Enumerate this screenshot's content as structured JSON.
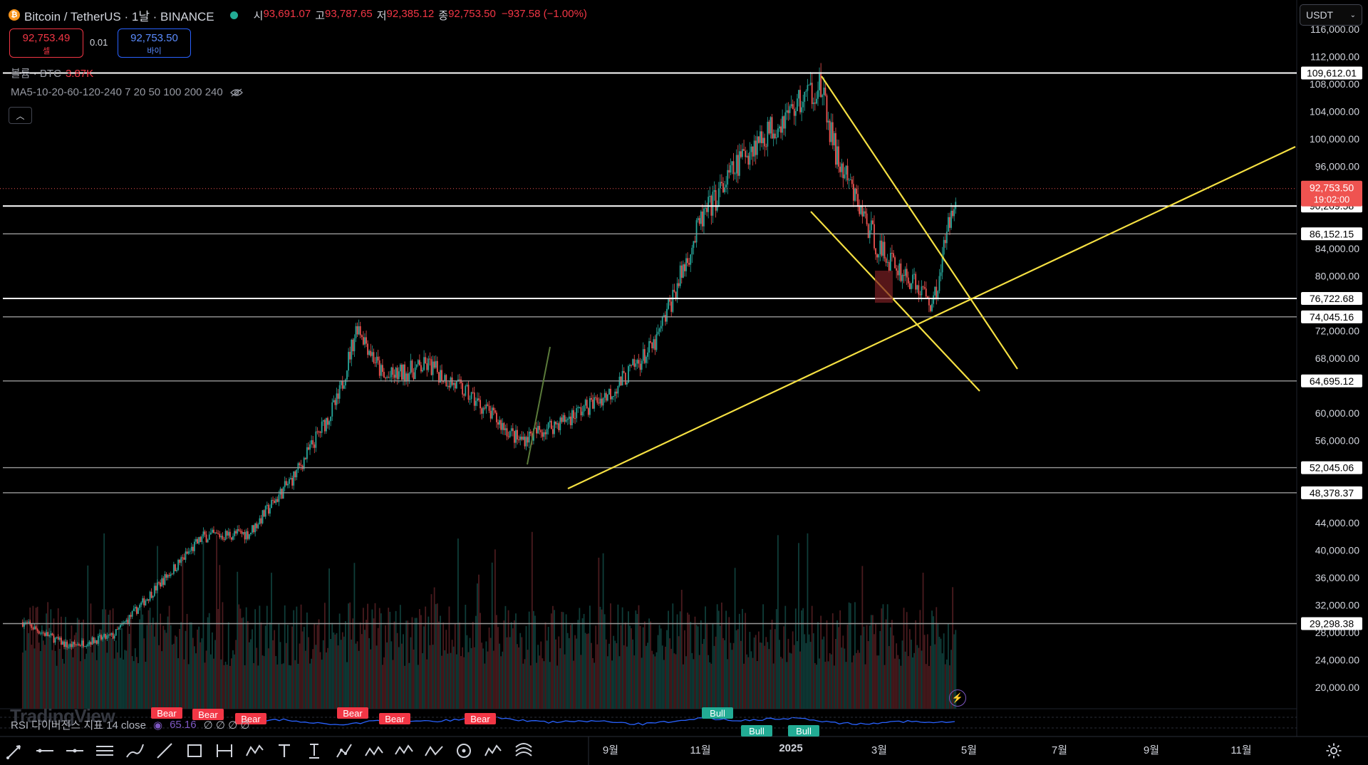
{
  "header": {
    "symbol": "Bitcoin / TetherUS · 1날 · BINANCE",
    "ohlc": [
      {
        "label": "시",
        "value": "93,691.07"
      },
      {
        "label": "고",
        "value": "93,787.65"
      },
      {
        "label": "저",
        "value": "92,385.12"
      },
      {
        "label": "종",
        "value": "92,753.50"
      },
      {
        "label": "",
        "value": "−937.58 (−1.00%)"
      }
    ]
  },
  "trade": {
    "sell_price": "92,753.49",
    "sell_label": "셀",
    "spread": "0.01",
    "buy_price": "92,753.50",
    "buy_label": "바이"
  },
  "volume_legend": {
    "label": "볼륨 · BTC",
    "value": "3.87K"
  },
  "ma_legend": "MA5-10-20-60-120-240 7 20 50 100 200 240",
  "currency_button": "USDT",
  "rsi_legend": {
    "label": "RSI 다이버전스 지표 14 close",
    "value": "65.16",
    "extra": "∅ ∅ ∅ ∅"
  },
  "watermark": "TradingView",
  "price_axis": {
    "ticks": [
      "116,000.00",
      "112,000.00",
      "108,000.00",
      "104,000.00",
      "100,000.00",
      "96,000.00",
      "84,000.00",
      "80,000.00",
      "72,000.00",
      "68,000.00",
      "60,000.00",
      "56,000.00",
      "44,000.00",
      "40,000.00",
      "36,000.00",
      "32,000.00",
      "28,000.00",
      "24,000.00",
      "20,000.00"
    ],
    "level_labels": [
      "109,612.01",
      "90,209.58",
      "86,152.15",
      "76,722.68",
      "74,045.16",
      "64,695.12",
      "52,045.06",
      "48,378.37",
      "29,298.38"
    ],
    "current_price": "92,753.50",
    "countdown": "19:02:00"
  },
  "time_axis": [
    "9월",
    "11월",
    "2025",
    "3월",
    "5월",
    "7월",
    "9월",
    "11월"
  ],
  "signals": [
    "Bear",
    "Bear",
    "Bear",
    "Bear",
    "Bear",
    "Bear",
    "Bull",
    "Bull",
    "Bull"
  ],
  "toolbar": [
    "cursor-icon",
    "horizontal-line-icon",
    "horizontal-ray-icon",
    "parallel-lines-icon",
    "brush-icon",
    "trend-line-icon",
    "rectangle-icon",
    "date-range-icon",
    "wave-icon",
    "text-icon",
    "text-anchor-icon",
    "pattern-icon",
    "wave-wy-icon",
    "wave-ae-icon",
    "wave-ac-icon",
    "cycle-icon",
    "wave-15-icon",
    "chart-pattern-icon"
  ],
  "colors": {
    "bg": "#000000",
    "up": "#26a69a",
    "down": "#ef5350",
    "trend": "#f5e042",
    "level": "#ffffff",
    "rsi": "#2962ff"
  },
  "chart_data": {
    "type": "candlestick",
    "title": "Bitcoin / TetherUS · 1날 · BINANCE",
    "ylim": [
      16000,
      118000
    ],
    "horizontal_levels": [
      109612.01,
      90209.58,
      86152.15,
      76722.68,
      74045.16,
      64695.12,
      52045.06,
      48378.37,
      29298.38
    ],
    "close_path": [
      [
        "2023-08",
        29500
      ],
      [
        "2023-09",
        26000
      ],
      [
        "2023-10",
        27500
      ],
      [
        "2023-11",
        35000
      ],
      [
        "2023-12",
        42000
      ],
      [
        "2024-01",
        42500
      ],
      [
        "2024-02",
        51000
      ],
      [
        "2024-03",
        62000
      ],
      [
        "2024-03-14",
        73000
      ],
      [
        "2024-04",
        65000
      ],
      [
        "2024-05",
        67000
      ],
      [
        "2024-06",
        62000
      ],
      [
        "2024-07",
        56000
      ],
      [
        "2024-08",
        59000
      ],
      [
        "2024-09",
        63000
      ],
      [
        "2024-10",
        70000
      ],
      [
        "2024-11",
        88000
      ],
      [
        "2024-12",
        98000
      ],
      [
        "2025-01-20",
        108000
      ],
      [
        "2025-02",
        97000
      ],
      [
        "2025-03",
        84000
      ],
      [
        "2025-04-07",
        76000
      ],
      [
        "2025-04-22",
        92753.5
      ]
    ]
  }
}
